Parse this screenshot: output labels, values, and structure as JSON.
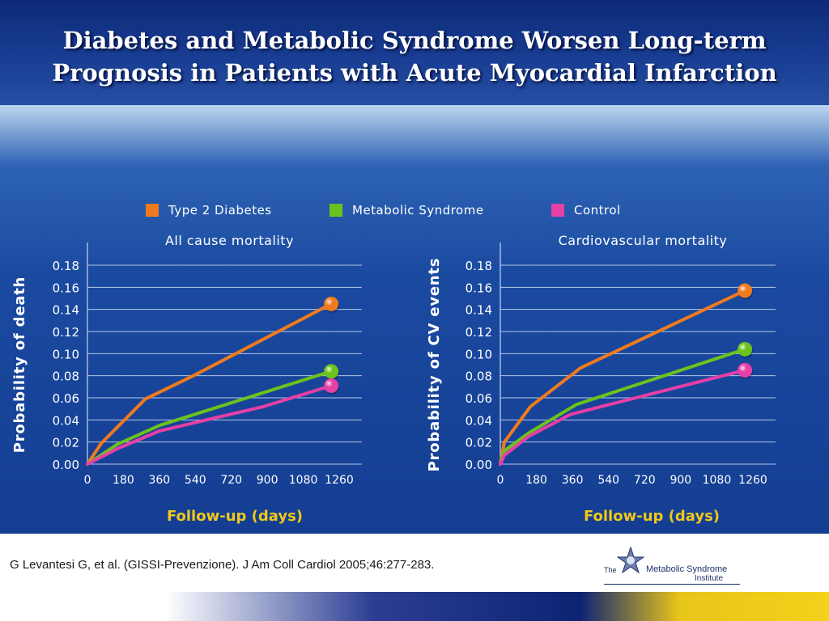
{
  "slide": {
    "title_line1": "Diabetes and Metabolic Syndrome Worsen Long-term",
    "title_line2": "Prognosis in Patients with Acute Myocardial Infarction",
    "citation": "G Levantesi G, et al. (GISSI-Prevenzione). J Am Coll Cardiol 2005;46:277-283.",
    "logo": {
      "the": "The",
      "name": "Metabolic Syndrome",
      "institute": "Institute"
    }
  },
  "legend": [
    {
      "label": "Type 2 Diabetes",
      "color": "#f07a1e"
    },
    {
      "label": "Metabolic Syndrome",
      "color": "#6cc21c"
    },
    {
      "label": "Control",
      "color": "#e63fa6"
    }
  ],
  "colors": {
    "axis_text": "#ffffff",
    "xlabel": "#f0c81a",
    "grid": "#c8d6ee"
  },
  "chart_data": [
    {
      "type": "line",
      "title": "All cause mortality",
      "ylabel": "Probability of death",
      "xlabel": "Follow-up (days)",
      "xticks": [
        0,
        180,
        360,
        540,
        720,
        900,
        1080,
        1260
      ],
      "yticks": [
        "0.00",
        "0.02",
        "0.04",
        "0.06",
        "0.08",
        "0.10",
        "0.12",
        "0.14",
        "0.16",
        "0.18"
      ],
      "xlim": [
        0,
        1260
      ],
      "ylim": [
        0,
        0.18
      ],
      "grid": true,
      "series": [
        {
          "name": "Type 2 Diabetes",
          "color": "#f07a1e",
          "x": [
            0,
            70,
            290,
            530,
            1220
          ],
          "y": [
            0.0,
            0.019,
            0.059,
            0.08,
            0.145
          ]
        },
        {
          "name": "Metabolic Syndrome",
          "color": "#6cc21c",
          "x": [
            0,
            150,
            360,
            1220
          ],
          "y": [
            0.0,
            0.018,
            0.035,
            0.084
          ]
        },
        {
          "name": "Control",
          "color": "#e63fa6",
          "x": [
            0,
            150,
            360,
            880,
            1220
          ],
          "y": [
            0.0,
            0.014,
            0.03,
            0.052,
            0.071
          ]
        }
      ]
    },
    {
      "type": "line",
      "title": "Cardiovascular mortality",
      "ylabel": "Probability of CV events",
      "xlabel": "Follow-up (days)",
      "xticks": [
        0,
        180,
        360,
        540,
        720,
        900,
        1080,
        1260
      ],
      "yticks": [
        "0.00",
        "0.02",
        "0.04",
        "0.06",
        "0.08",
        "0.10",
        "0.12",
        "0.14",
        "0.16",
        "0.18"
      ],
      "xlim": [
        0,
        1260
      ],
      "ylim": [
        0,
        0.18
      ],
      "grid": true,
      "series": [
        {
          "name": "Type 2 Diabetes",
          "color": "#f07a1e",
          "x": [
            0,
            20,
            150,
            400,
            1220
          ],
          "y": [
            0.0,
            0.02,
            0.052,
            0.087,
            0.157
          ]
        },
        {
          "name": "Metabolic Syndrome",
          "color": "#6cc21c",
          "x": [
            0,
            20,
            140,
            380,
            1220
          ],
          "y": [
            0.0,
            0.012,
            0.028,
            0.054,
            0.104
          ]
        },
        {
          "name": "Control",
          "color": "#e63fa6",
          "x": [
            0,
            20,
            140,
            350,
            1220
          ],
          "y": [
            0.0,
            0.008,
            0.025,
            0.045,
            0.085
          ]
        }
      ]
    }
  ]
}
